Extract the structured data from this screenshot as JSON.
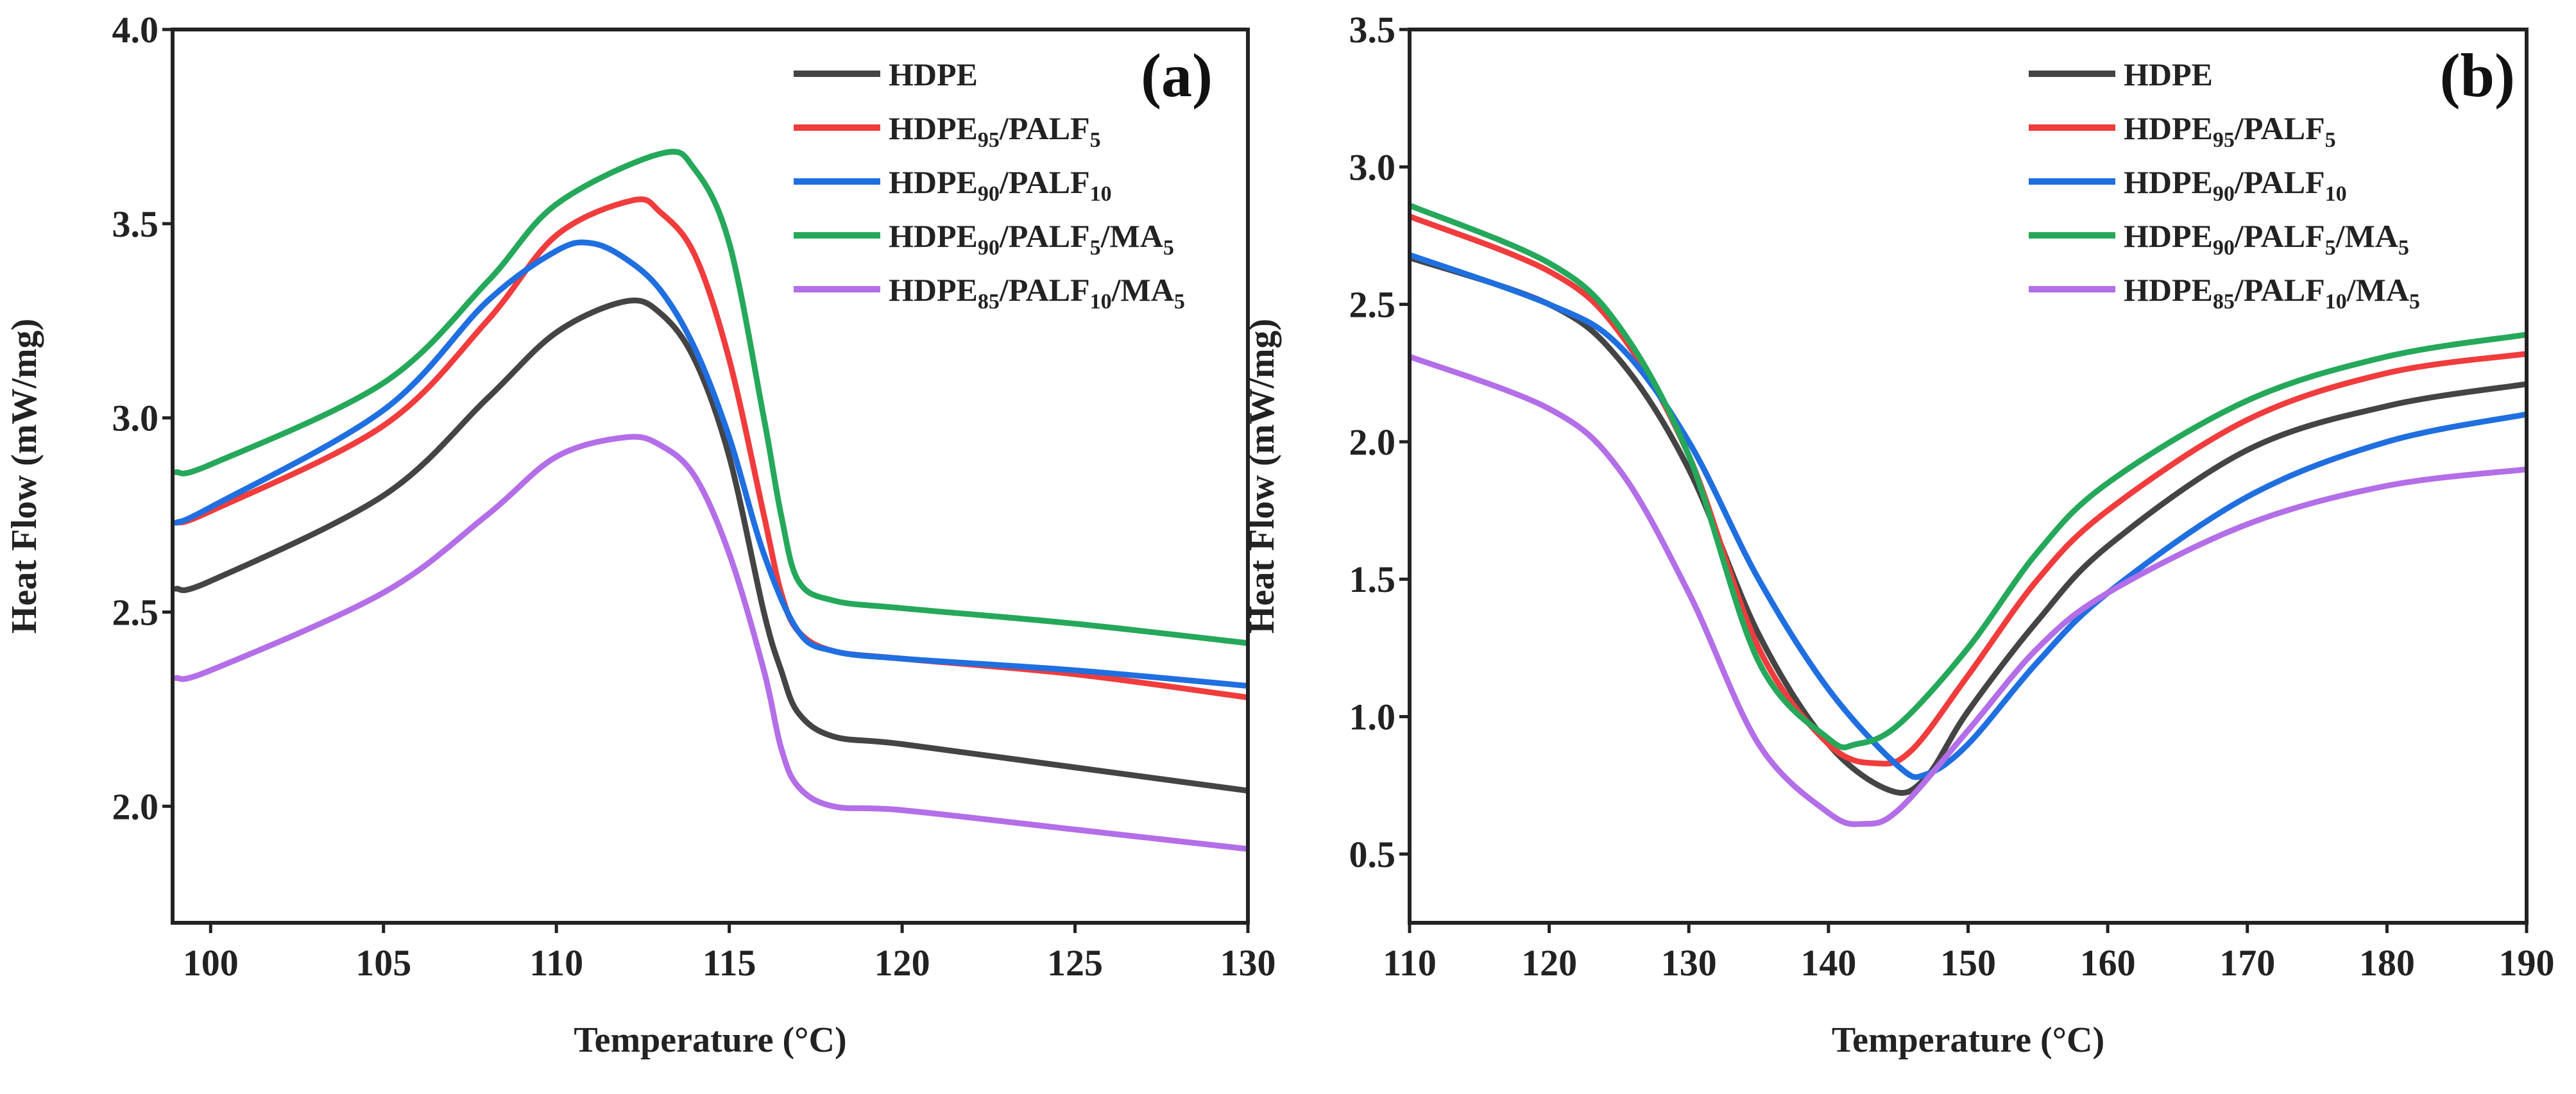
{
  "chart_data": [
    {
      "type": "line",
      "panel_label": "(a)",
      "xlabel": "Temperature (°C)",
      "ylabel": "Heat Flow (mW/mg)",
      "xlim": [
        98.9,
        130
      ],
      "ylim": [
        1.7,
        4.0
      ],
      "xticks": [
        100,
        105,
        110,
        115,
        120,
        125,
        130
      ],
      "yticks": [
        2.0,
        2.5,
        3.0,
        3.5,
        4.0
      ],
      "xtick_labels": [
        "100",
        "105",
        "110",
        "115",
        "120",
        "125",
        "130"
      ],
      "ytick_labels": [
        "2.0",
        "2.5",
        "3.0",
        "3.5",
        "4.0"
      ],
      "legend_position": "top-right",
      "series": [
        {
          "name": "HDPE",
          "color": "#444444",
          "label": [
            {
              "t": "HDPE"
            }
          ],
          "x": [
            99,
            100,
            105,
            108,
            110,
            112,
            113,
            114,
            115,
            116,
            116.5,
            117,
            118,
            120,
            125,
            130
          ],
          "y": [
            2.56,
            2.58,
            2.8,
            3.05,
            3.22,
            3.3,
            3.27,
            3.15,
            2.9,
            2.5,
            2.35,
            2.24,
            2.18,
            2.16,
            2.1,
            2.04
          ]
        },
        {
          "name": "HDPE95/PALF5",
          "color": "#f03c3c",
          "label": [
            {
              "t": "HDPE"
            },
            {
              "t": "95",
              "sub": true
            },
            {
              "t": "/PALF"
            },
            {
              "t": "5",
              "sub": true
            }
          ],
          "x": [
            99,
            100,
            105,
            108,
            110,
            112.2,
            113,
            114,
            115,
            116,
            116.5,
            117,
            118,
            120,
            125,
            130
          ],
          "y": [
            2.73,
            2.76,
            2.98,
            3.25,
            3.47,
            3.56,
            3.53,
            3.42,
            3.15,
            2.75,
            2.55,
            2.45,
            2.4,
            2.38,
            2.34,
            2.28
          ]
        },
        {
          "name": "HDPE90/PALF10",
          "color": "#1f6fe0",
          "label": [
            {
              "t": "HDPE"
            },
            {
              "t": "90",
              "sub": true
            },
            {
              "t": "/PALF"
            },
            {
              "t": "10",
              "sub": true
            }
          ],
          "x": [
            99,
            100,
            105,
            108,
            110,
            111,
            112,
            113,
            114,
            115,
            116,
            117,
            118,
            120,
            125,
            130
          ],
          "y": [
            2.73,
            2.77,
            3.02,
            3.3,
            3.43,
            3.45,
            3.41,
            3.33,
            3.18,
            2.95,
            2.65,
            2.45,
            2.4,
            2.38,
            2.35,
            2.31
          ]
        },
        {
          "name": "HDPE90/PALF5/MA5",
          "color": "#25a85a",
          "label": [
            {
              "t": "HDPE"
            },
            {
              "t": "90",
              "sub": true
            },
            {
              "t": "/PALF"
            },
            {
              "t": "5",
              "sub": true
            },
            {
              "t": "/MA"
            },
            {
              "t": "5",
              "sub": true
            }
          ],
          "x": [
            99,
            100,
            105,
            108,
            110,
            113,
            114,
            115,
            116,
            116.5,
            117,
            118,
            120,
            125,
            130
          ],
          "y": [
            2.86,
            2.88,
            3.09,
            3.35,
            3.55,
            3.68,
            3.64,
            3.45,
            3.0,
            2.75,
            2.58,
            2.53,
            2.51,
            2.47,
            2.42
          ]
        },
        {
          "name": "HDPE85/PALF10/MA5",
          "color": "#b36ee8",
          "label": [
            {
              "t": "HDPE"
            },
            {
              "t": "85",
              "sub": true
            },
            {
              "t": "/PALF"
            },
            {
              "t": "10",
              "sub": true
            },
            {
              "t": "/MA"
            },
            {
              "t": "5",
              "sub": true
            }
          ],
          "x": [
            99,
            100,
            105,
            108,
            110,
            112,
            113,
            114,
            115,
            116,
            116.5,
            117,
            118,
            120,
            125,
            130
          ],
          "y": [
            2.33,
            2.35,
            2.55,
            2.75,
            2.9,
            2.95,
            2.93,
            2.85,
            2.65,
            2.35,
            2.15,
            2.05,
            2.0,
            1.99,
            1.94,
            1.89
          ]
        }
      ]
    },
    {
      "type": "line",
      "panel_label": "(b)",
      "xlabel": "Temperature (°C)",
      "ylabel": "Heat Flow (mW/mg)",
      "xlim": [
        110,
        190
      ],
      "ylim": [
        0.25,
        3.5
      ],
      "xticks": [
        110,
        120,
        130,
        140,
        150,
        160,
        170,
        180,
        190
      ],
      "yticks": [
        0.5,
        1.0,
        1.5,
        2.0,
        2.5,
        3.0,
        3.5
      ],
      "xtick_labels": [
        "110",
        "120",
        "130",
        "140",
        "150",
        "160",
        "170",
        "180",
        "190"
      ],
      "ytick_labels": [
        "0.5",
        "1.0",
        "1.5",
        "2.0",
        "2.5",
        "3.0",
        "3.5"
      ],
      "legend_position": "top-right",
      "series": [
        {
          "name": "HDPE",
          "color": "#444444",
          "label": [
            {
              "t": "HDPE"
            }
          ],
          "x": [
            110,
            120,
            125,
            130,
            135,
            140,
            144.5,
            147,
            150,
            155,
            160,
            170,
            180,
            190
          ],
          "y": [
            2.67,
            2.5,
            2.3,
            1.9,
            1.3,
            0.9,
            0.73,
            0.78,
            1.02,
            1.35,
            1.62,
            1.97,
            2.13,
            2.21
          ]
        },
        {
          "name": "HDPE95/PALF5",
          "color": "#f03c3c",
          "label": [
            {
              "t": "HDPE"
            },
            {
              "t": "95",
              "sub": true
            },
            {
              "t": "/PALF"
            },
            {
              "t": "5",
              "sub": true
            }
          ],
          "x": [
            110,
            120,
            125,
            130,
            135,
            140,
            143.5,
            146,
            150,
            155,
            160,
            170,
            180,
            190
          ],
          "y": [
            2.82,
            2.62,
            2.4,
            1.95,
            1.25,
            0.9,
            0.83,
            0.88,
            1.15,
            1.5,
            1.75,
            2.08,
            2.25,
            2.32
          ]
        },
        {
          "name": "HDPE90/PALF10",
          "color": "#1f6fe0",
          "label": [
            {
              "t": "HDPE"
            },
            {
              "t": "90",
              "sub": true
            },
            {
              "t": "/PALF"
            },
            {
              "t": "10",
              "sub": true
            }
          ],
          "x": [
            110,
            120,
            125,
            130,
            135,
            140,
            145,
            147,
            150,
            155,
            160,
            170,
            180,
            190
          ],
          "y": [
            2.68,
            2.5,
            2.35,
            2.0,
            1.5,
            1.1,
            0.82,
            0.79,
            0.9,
            1.2,
            1.45,
            1.8,
            2.0,
            2.1
          ]
        },
        {
          "name": "HDPE90/PALF5/MA5",
          "color": "#25a85a",
          "label": [
            {
              "t": "HDPE"
            },
            {
              "t": "90",
              "sub": true
            },
            {
              "t": "/PALF"
            },
            {
              "t": "5",
              "sub": true
            },
            {
              "t": "/MA"
            },
            {
              "t": "5",
              "sub": true
            }
          ],
          "x": [
            110,
            120,
            125,
            130,
            135,
            140,
            142,
            145,
            150,
            155,
            160,
            170,
            180,
            190
          ],
          "y": [
            2.86,
            2.65,
            2.42,
            1.95,
            1.2,
            0.92,
            0.9,
            0.97,
            1.25,
            1.6,
            1.85,
            2.15,
            2.31,
            2.39
          ]
        },
        {
          "name": "HDPE85/PALF10/MA5",
          "color": "#b36ee8",
          "label": [
            {
              "t": "HDPE"
            },
            {
              "t": "85",
              "sub": true
            },
            {
              "t": "/PALF"
            },
            {
              "t": "10",
              "sub": true
            },
            {
              "t": "/MA"
            },
            {
              "t": "5",
              "sub": true
            }
          ],
          "x": [
            110,
            120,
            125,
            130,
            135,
            140,
            142.5,
            145,
            150,
            155,
            160,
            170,
            180,
            190
          ],
          "y": [
            2.31,
            2.12,
            1.9,
            1.45,
            0.9,
            0.65,
            0.61,
            0.66,
            0.95,
            1.25,
            1.45,
            1.7,
            1.84,
            1.9
          ]
        }
      ]
    }
  ]
}
